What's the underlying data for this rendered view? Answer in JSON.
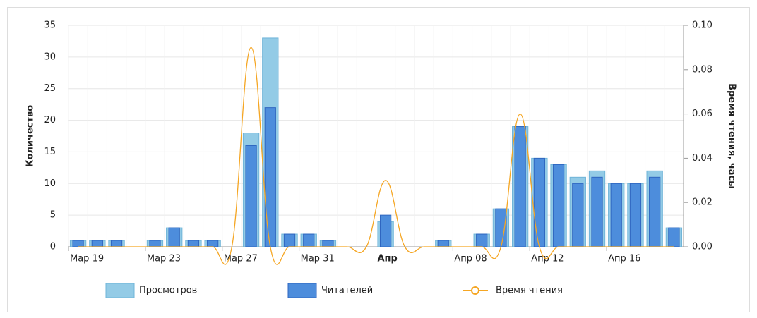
{
  "chart_data": {
    "type": "bar-line",
    "categories": [
      "Мар 19",
      null,
      null,
      null,
      "Мар 23",
      null,
      null,
      null,
      "Мар 27",
      null,
      null,
      null,
      "Мар 31",
      null,
      null,
      null,
      "Апр",
      null,
      null,
      null,
      "Апр 08",
      null,
      null,
      null,
      "Апр 12",
      null,
      null,
      null,
      "Апр 16",
      null,
      null,
      null
    ],
    "bold_categories": [
      "Апр"
    ],
    "series": [
      {
        "name": "Просмотров",
        "color": "#93cbe6",
        "values": [
          1,
          1,
          1,
          0,
          1,
          3,
          1,
          1,
          0,
          18,
          33,
          2,
          2,
          1,
          0,
          0,
          4,
          0,
          0,
          1,
          0,
          2,
          6,
          19,
          14,
          13,
          11,
          12,
          10,
          10,
          12,
          3
        ]
      },
      {
        "name": "Читателей",
        "color": "#4d8ddc",
        "values": [
          1,
          1,
          1,
          0,
          1,
          3,
          1,
          1,
          0,
          16,
          22,
          2,
          2,
          1,
          0,
          0,
          5,
          0,
          0,
          1,
          0,
          2,
          6,
          19,
          14,
          13,
          10,
          11,
          10,
          10,
          11,
          3
        ]
      },
      {
        "name": "Время чтения",
        "color": "#f5a623",
        "axis": "y2",
        "values": [
          0,
          0,
          0,
          0,
          0,
          0,
          0,
          0,
          0,
          0.09,
          0,
          0,
          0,
          0,
          0,
          0,
          0.03,
          0,
          0,
          0,
          0,
          0,
          0,
          0.06,
          0,
          0,
          0,
          0,
          0,
          0,
          0,
          0
        ]
      }
    ],
    "ylabel": "Количество",
    "y2label": "Время чтения, часы",
    "ylim": [
      0,
      35
    ],
    "yticks": [
      0,
      5,
      10,
      15,
      20,
      25,
      30,
      35
    ],
    "y2lim": [
      0,
      0.1
    ],
    "y2ticks": [
      {
        "value": 0,
        "label": "0.00"
      },
      {
        "value": 0.02,
        "label": "0.02"
      },
      {
        "value": 0.04,
        "label": "0.04"
      },
      {
        "value": 0.06,
        "label": "0.06"
      },
      {
        "value": 0.08,
        "label": "0.08"
      },
      {
        "value": 0.1,
        "label": "0.10"
      }
    ],
    "grid": true
  }
}
